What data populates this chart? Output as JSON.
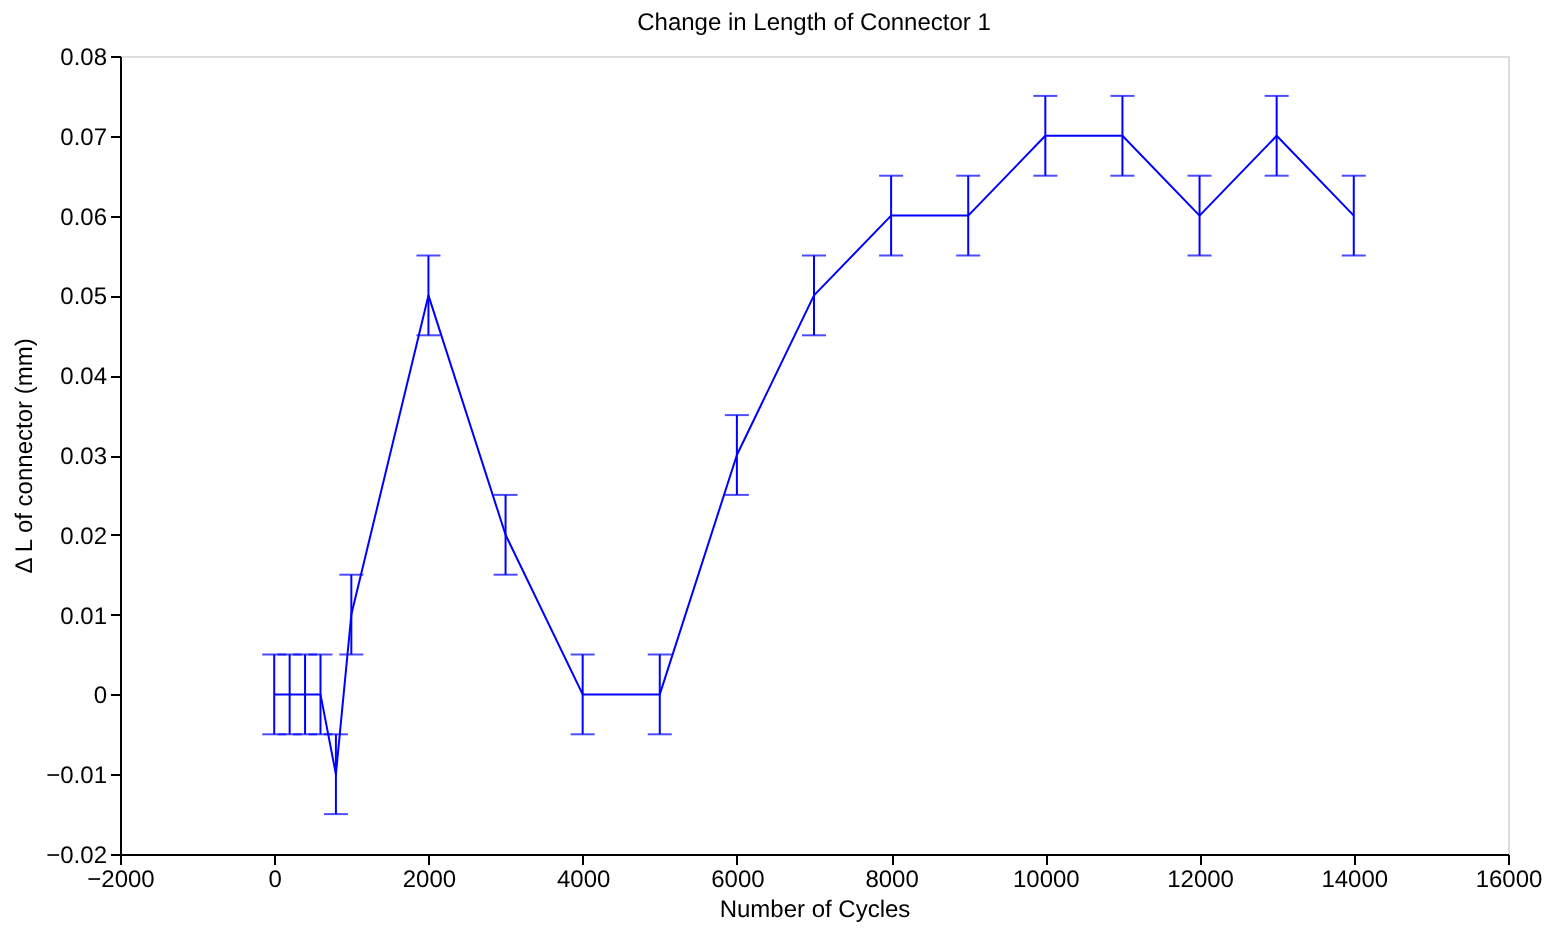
{
  "chart_data": {
    "type": "line",
    "title": "Change in Length of Connector 1",
    "xlabel": "Number of Cycles",
    "ylabel": "Δ L of connector (mm)",
    "x": [
      0,
      200,
      400,
      600,
      800,
      1000,
      2000,
      3000,
      4000,
      5000,
      6000,
      7000,
      8000,
      9000,
      10000,
      11000,
      12000,
      13000,
      14000
    ],
    "series": [
      {
        "color": "#0000ff",
        "values": [
          0,
          0,
          0,
          0,
          -0.01,
          0.01,
          0.05,
          0.02,
          0,
          0,
          0.03,
          0.05,
          0.06,
          0.06,
          0.07,
          0.07,
          0.06,
          0.07,
          0.06
        ],
        "errors": [
          0.005,
          0.005,
          0.005,
          0.005,
          0.005,
          0.005,
          0.005,
          0.005,
          0.005,
          0.005,
          0.005,
          0.005,
          0.005,
          0.005,
          0.005,
          0.005,
          0.005,
          0.005,
          0.005
        ]
      }
    ],
    "xlim": [
      -2000,
      16000
    ],
    "xticks": [
      -2000,
      0,
      2000,
      4000,
      6000,
      8000,
      10000,
      12000,
      14000,
      16000
    ],
    "ylim": [
      -0.02,
      0.08
    ],
    "yticks": [
      -0.02,
      -0.01,
      0,
      0.01,
      0.02,
      0.03,
      0.04,
      0.05,
      0.06,
      0.07,
      0.08
    ],
    "grid": false,
    "marker": "none",
    "line_style": "solid"
  }
}
